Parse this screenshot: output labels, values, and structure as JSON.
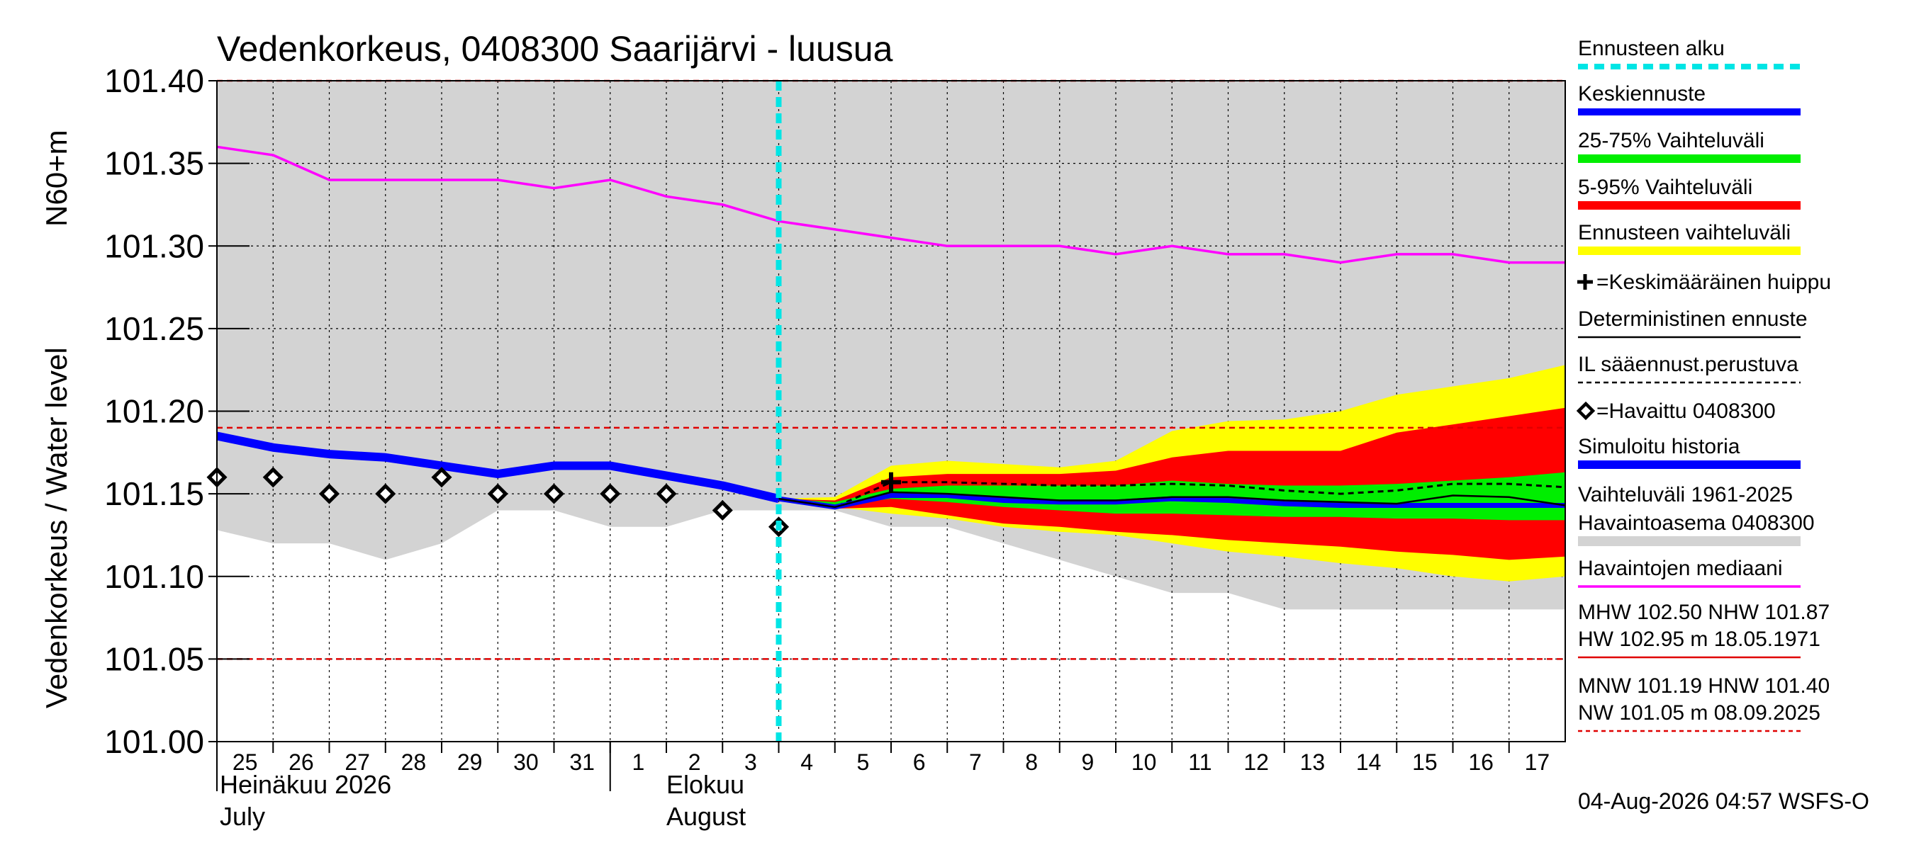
{
  "title": "Vedenkorkeus, 0408300 Saarijärvi - luusua",
  "ylabel_fi": "Vedenkorkeus / Water level",
  "ylabel_unit": "N60+m",
  "timestamp": "04-Aug-2026 04:57 WSFS-O",
  "months": [
    {
      "fi": "Heinäkuu  2026",
      "en": "July"
    },
    {
      "fi": "Elokuu",
      "en": "August"
    }
  ],
  "colors": {
    "history_band": "#d3d3d3",
    "forecast_range": "#ffff00",
    "p5_95": "#ff0000",
    "p25_75": "#00ee00",
    "median_forecast": "#0000ff",
    "simulated": "#0000ff",
    "obs_median": "#ff00ff",
    "forecast_start": "#00e5e5",
    "ref_lines": "#e00000"
  },
  "legend": [
    {
      "label": "Ennusteen alku",
      "style": "dashed-cyan"
    },
    {
      "label": "Keskiennuste",
      "style": "blue"
    },
    {
      "label": "25-75% Vaihteluväli",
      "style": "green"
    },
    {
      "label": "5-95% Vaihteluväli",
      "style": "red"
    },
    {
      "label": "Ennusteen vaihteluväli",
      "style": "yellow"
    },
    {
      "label": "=Keskimääräinen huippu",
      "style": "plus"
    },
    {
      "label": "Deterministinen ennuste",
      "style": "black"
    },
    {
      "label": "IL sääennust.perustuva",
      "style": "black-dashed"
    },
    {
      "label": "=Havaittu 0408300",
      "style": "diamond"
    },
    {
      "label": "Simuloitu historia",
      "style": "blue-thick"
    },
    {
      "label": "Vaihteluväli 1961-2025",
      "style": "none"
    },
    {
      "label": "Havaintoasema 0408300",
      "style": "grey"
    },
    {
      "label": "Havaintojen mediaani",
      "style": "magenta"
    },
    {
      "label": "MHW 102.50 NHW 101.87",
      "style": "none"
    },
    {
      "label": "HW 102.95 m 18.05.1971",
      "style": "red-thin"
    },
    {
      "label": "MNW 101.19 HNW 101.40",
      "style": "none"
    },
    {
      "label": "NW 101.05 m 08.09.2025",
      "style": "red-dashed"
    }
  ],
  "chart_data": {
    "type": "area",
    "title": "Vedenkorkeus, 0408300 Saarijärvi - luusua",
    "ylabel": "Vedenkorkeus / Water level N60+m",
    "ylim": [
      101.0,
      101.4
    ],
    "yticks": [
      "101.00",
      "101.05",
      "101.10",
      "101.15",
      "101.20",
      "101.25",
      "101.30",
      "101.35",
      "101.40"
    ],
    "x_start": "2026-07-25",
    "x_end": "2026-08-18",
    "x_tick_labels": [
      "25",
      "26",
      "27",
      "28",
      "29",
      "30",
      "31",
      "1",
      "2",
      "3",
      "4",
      "5",
      "6",
      "7",
      "8",
      "9",
      "10",
      "11",
      "12",
      "13",
      "14",
      "15",
      "16",
      "17"
    ],
    "forecast_start": "2026-08-04",
    "reference_lines": [
      {
        "name": "HNW",
        "value": 101.4
      },
      {
        "name": "MNW",
        "value": 101.19
      },
      {
        "name": "NW",
        "value": 101.05
      }
    ],
    "history_band": {
      "x": [
        "2026-07-25",
        "2026-07-26",
        "2026-07-27",
        "2026-07-28",
        "2026-07-29",
        "2026-07-30",
        "2026-07-31",
        "2026-08-01",
        "2026-08-02",
        "2026-08-03",
        "2026-08-04",
        "2026-08-05",
        "2026-08-06",
        "2026-08-07",
        "2026-08-08",
        "2026-08-09",
        "2026-08-10",
        "2026-08-11",
        "2026-08-12",
        "2026-08-13",
        "2026-08-14",
        "2026-08-15",
        "2026-08-16",
        "2026-08-17",
        "2026-08-18"
      ],
      "low": [
        101.128,
        101.12,
        101.12,
        101.11,
        101.12,
        101.14,
        101.14,
        101.13,
        101.13,
        101.14,
        101.14,
        101.14,
        101.13,
        101.13,
        101.12,
        101.11,
        101.1,
        101.09,
        101.09,
        101.08,
        101.08,
        101.08,
        101.08,
        101.08,
        101.08
      ],
      "high": [
        101.4,
        101.4,
        101.4,
        101.4,
        101.4,
        101.4,
        101.4,
        101.4,
        101.4,
        101.4,
        101.4,
        101.4,
        101.4,
        101.4,
        101.4,
        101.4,
        101.4,
        101.4,
        101.4,
        101.4,
        101.4,
        101.4,
        101.4,
        101.4,
        101.4
      ]
    },
    "obs_median": {
      "x": [
        "2026-07-25",
        "2026-07-26",
        "2026-07-27",
        "2026-07-28",
        "2026-07-29",
        "2026-07-30",
        "2026-07-31",
        "2026-08-01",
        "2026-08-02",
        "2026-08-03",
        "2026-08-04",
        "2026-08-05",
        "2026-08-06",
        "2026-08-07",
        "2026-08-08",
        "2026-08-09",
        "2026-08-10",
        "2026-08-11",
        "2026-08-12",
        "2026-08-13",
        "2026-08-14",
        "2026-08-15",
        "2026-08-16",
        "2026-08-17",
        "2026-08-18"
      ],
      "y": [
        101.36,
        101.355,
        101.34,
        101.34,
        101.34,
        101.34,
        101.335,
        101.34,
        101.33,
        101.325,
        101.315,
        101.31,
        101.305,
        101.3,
        101.3,
        101.3,
        101.295,
        101.3,
        101.295,
        101.295,
        101.29,
        101.295,
        101.295,
        101.29,
        101.29
      ]
    },
    "simulated_history": {
      "x": [
        "2026-07-25",
        "2026-07-26",
        "2026-07-27",
        "2026-07-28",
        "2026-07-29",
        "2026-07-30",
        "2026-07-31",
        "2026-08-01",
        "2026-08-02",
        "2026-08-03",
        "2026-08-04"
      ],
      "y": [
        101.185,
        101.178,
        101.174,
        101.172,
        101.167,
        101.162,
        101.167,
        101.167,
        101.161,
        101.155,
        101.147
      ]
    },
    "observed": {
      "x": [
        "2026-07-25",
        "2026-07-26",
        "2026-07-27",
        "2026-07-28",
        "2026-07-29",
        "2026-07-30",
        "2026-07-31",
        "2026-08-01",
        "2026-08-02",
        "2026-08-03",
        "2026-08-04"
      ],
      "y": [
        101.16,
        101.16,
        101.15,
        101.15,
        101.16,
        101.15,
        101.15,
        101.15,
        101.15,
        101.14,
        101.13
      ]
    },
    "forecast": {
      "x": [
        "2026-08-04",
        "2026-08-05",
        "2026-08-06",
        "2026-08-07",
        "2026-08-08",
        "2026-08-09",
        "2026-08-10",
        "2026-08-11",
        "2026-08-12",
        "2026-08-13",
        "2026-08-14",
        "2026-08-15",
        "2026-08-16",
        "2026-08-17",
        "2026-08-18"
      ],
      "range_low": [
        101.147,
        101.142,
        101.138,
        101.135,
        101.13,
        101.127,
        101.125,
        101.12,
        101.115,
        101.112,
        101.108,
        101.105,
        101.1,
        101.097,
        101.1
      ],
      "range_high": [
        101.147,
        101.148,
        101.167,
        101.17,
        101.168,
        101.166,
        101.17,
        101.188,
        101.194,
        101.195,
        101.2,
        101.21,
        101.215,
        101.22,
        101.228
      ],
      "p5": [
        101.147,
        101.141,
        101.142,
        101.137,
        101.132,
        101.13,
        101.127,
        101.125,
        101.122,
        101.12,
        101.118,
        101.115,
        101.113,
        101.11,
        101.112
      ],
      "p95": [
        101.147,
        101.146,
        101.16,
        101.162,
        101.162,
        101.162,
        101.164,
        101.172,
        101.176,
        101.176,
        101.176,
        101.187,
        101.192,
        101.197,
        101.202
      ],
      "p25": [
        101.147,
        101.143,
        101.147,
        101.145,
        101.142,
        101.14,
        101.138,
        101.138,
        101.137,
        101.136,
        101.136,
        101.135,
        101.135,
        101.134,
        101.134
      ],
      "p75": [
        101.147,
        101.145,
        101.153,
        101.155,
        101.155,
        101.155,
        101.155,
        101.158,
        101.156,
        101.155,
        101.155,
        101.156,
        101.158,
        101.16,
        101.163
      ],
      "median": [
        101.147,
        101.142,
        101.149,
        101.149,
        101.146,
        101.145,
        101.145,
        101.147,
        101.146,
        101.144,
        101.143,
        101.143,
        101.143,
        101.143,
        101.143
      ],
      "deterministic": [
        101.147,
        101.142,
        101.151,
        101.15,
        101.148,
        101.146,
        101.146,
        101.148,
        101.148,
        101.146,
        101.145,
        101.144,
        101.149,
        101.148,
        101.143
      ],
      "il_weather": [
        101.147,
        101.142,
        101.157,
        101.157,
        101.156,
        101.155,
        101.155,
        101.156,
        101.155,
        101.152,
        101.15,
        101.152,
        101.156,
        101.156,
        101.154
      ]
    },
    "mean_peak": {
      "x": "2026-08-06",
      "y": 101.157
    }
  }
}
